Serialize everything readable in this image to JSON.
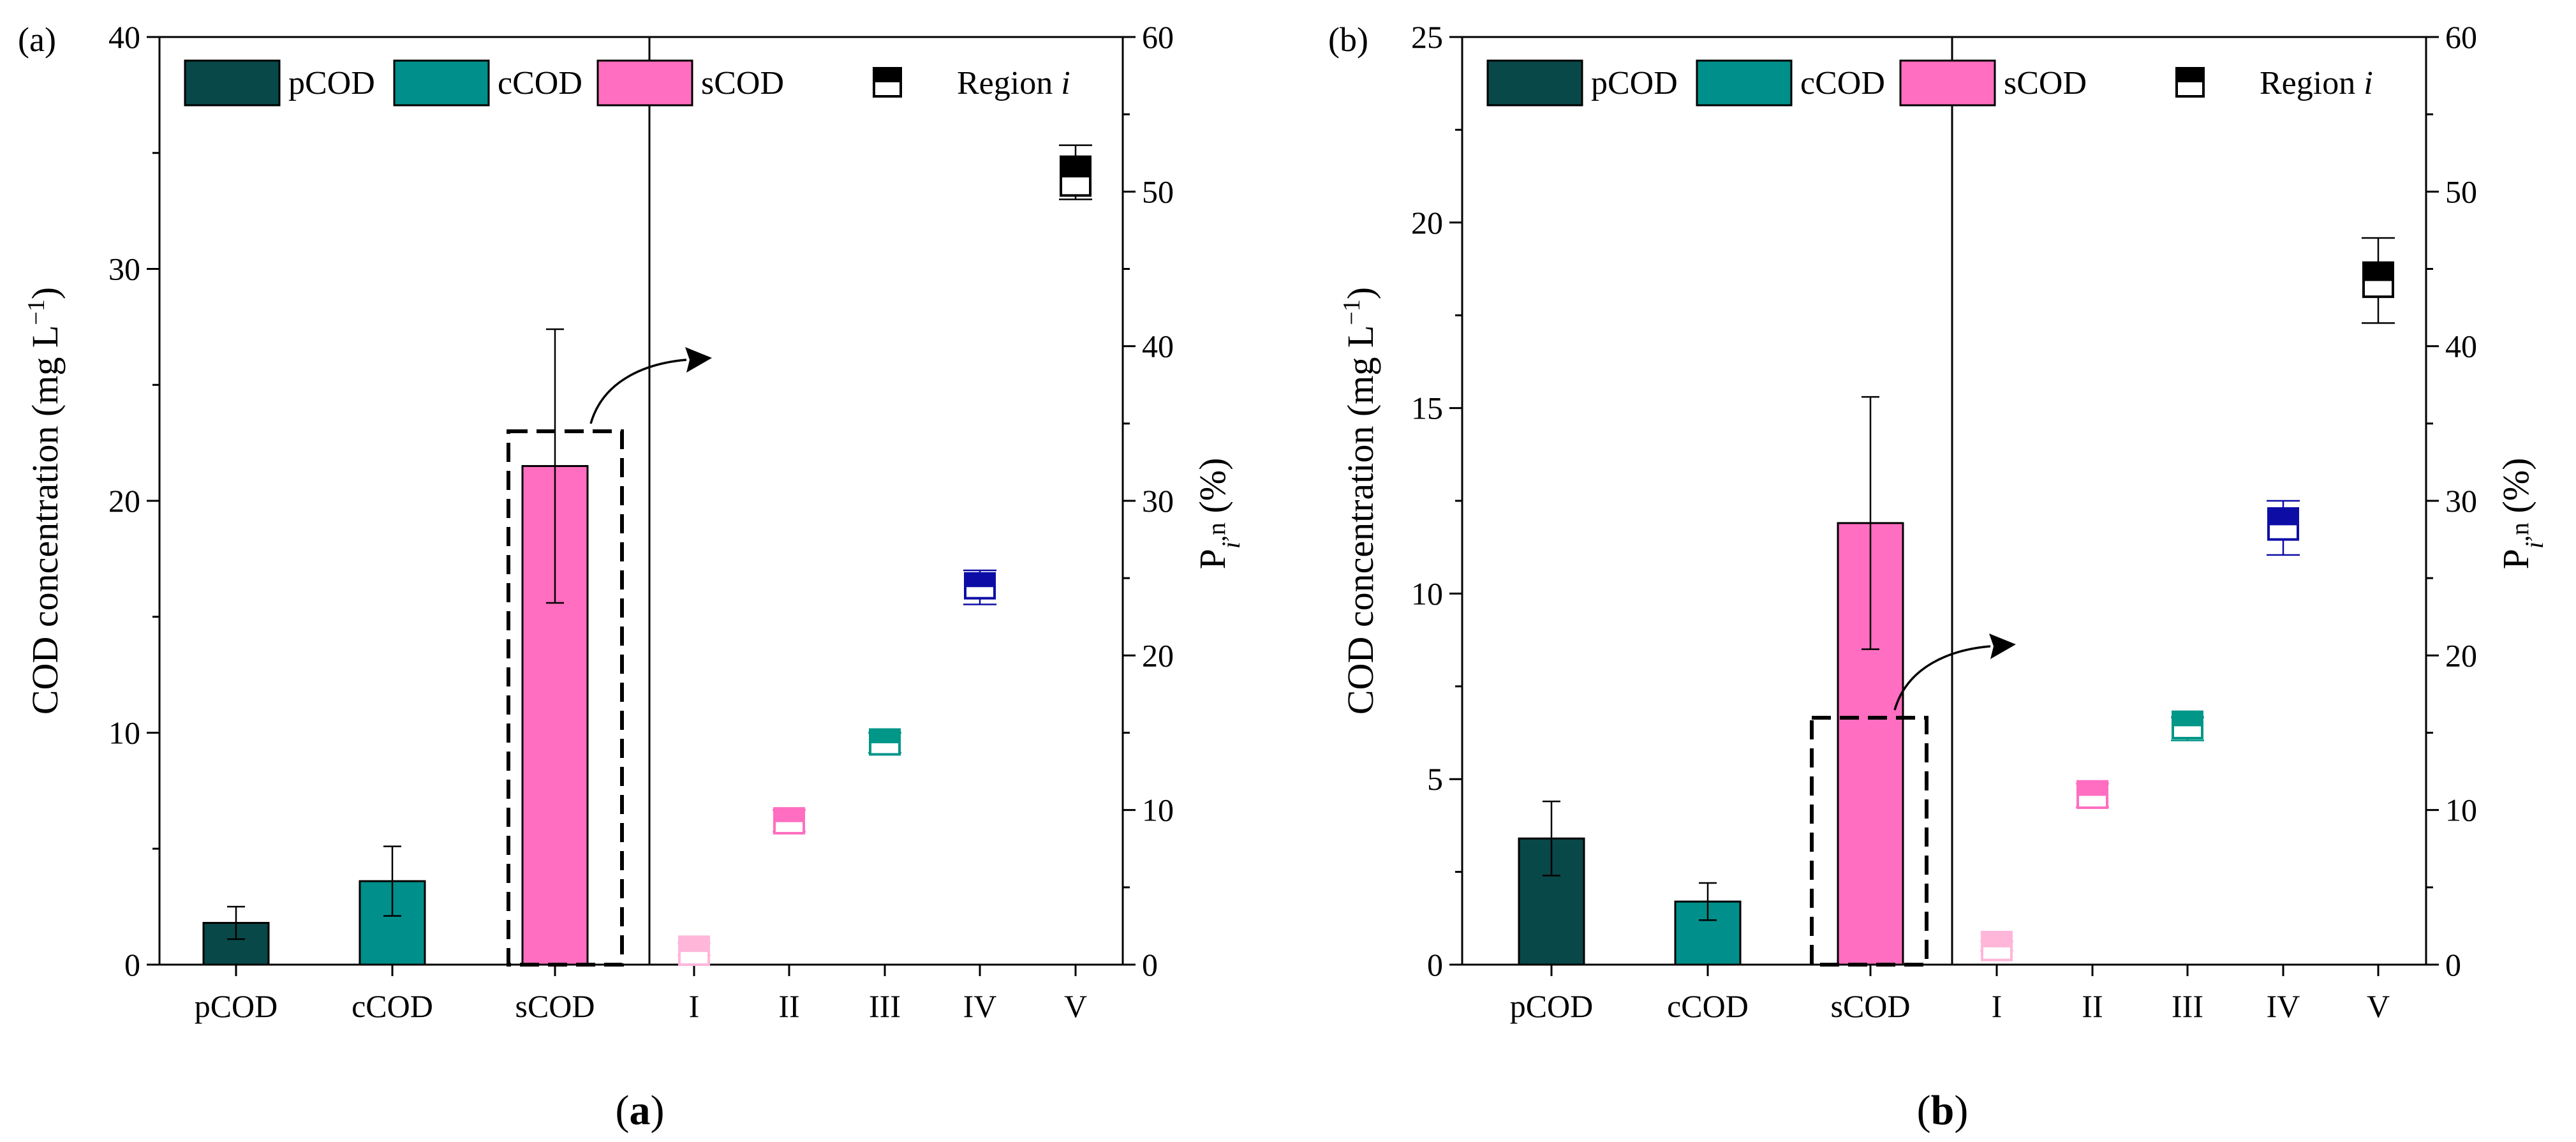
{
  "chart_data": [
    {
      "type": "bar",
      "panel_label": "(a)",
      "caption": {
        "open": "(",
        "letter": "a",
        "close": ")"
      },
      "categories": [
        "pCOD",
        "cCOD",
        "sCOD"
      ],
      "values": [
        1.8,
        3.6,
        21.5
      ],
      "errors": [
        0.7,
        1.5,
        5.9
      ],
      "bar_colors": [
        "#084848",
        "#008f8a",
        "#ff6ec0"
      ],
      "ylabel_left": {
        "main": "COD concentration (mg L",
        "sup": "−1",
        "close": ")"
      },
      "ylim_left": [
        0,
        40
      ],
      "yticks_left": [
        "0",
        "10",
        "20",
        "30",
        "40"
      ],
      "ylabel_right": {
        "main": "P",
        "sub_italic": "i",
        "sub_rest": ",n",
        "unit": " (%)"
      },
      "ylim_right": [
        0,
        60
      ],
      "yticks_right": [
        "0",
        "10",
        "20",
        "30",
        "40",
        "50",
        "60"
      ],
      "regions": [
        "I",
        "II",
        "III",
        "IV",
        "V"
      ],
      "region_colors": [
        "#ffb6d9",
        "#ff6ec0",
        "#009688",
        "#0d0da6",
        "#000000"
      ],
      "region_values": [
        0.9,
        9.3,
        14.4,
        24.5,
        51.0
      ],
      "region_upper": [
        1.4,
        10.0,
        15.0,
        25.5,
        53.0
      ],
      "region_lower": [
        0.6,
        8.6,
        13.7,
        23.3,
        49.5
      ],
      "region_box": [
        1.8,
        1.6,
        1.6,
        1.6,
        2.5
      ],
      "legend": [
        "pCOD",
        "cCOD",
        "sCOD",
        "Region "
      ],
      "legend_italic": "i",
      "grid": false
    },
    {
      "type": "bar",
      "panel_label": "(b)",
      "caption": {
        "open": "(",
        "letter": "b",
        "close": ")"
      },
      "categories": [
        "pCOD",
        "cCOD",
        "sCOD"
      ],
      "values": [
        3.4,
        1.7,
        11.9
      ],
      "errors": [
        1.0,
        0.5,
        3.4
      ],
      "bar_colors": [
        "#084848",
        "#008f8a",
        "#ff6ec0"
      ],
      "ylabel_left": {
        "main": "COD concentration (mg L",
        "sup": "−1",
        "close": ")"
      },
      "ylim_left": [
        0,
        25
      ],
      "yticks_left": [
        "0",
        "5",
        "10",
        "15",
        "20",
        "25"
      ],
      "ylabel_right": {
        "main": "P",
        "sub_italic": "i",
        "sub_rest": ",n",
        "unit": " (%)"
      },
      "ylim_right": [
        0,
        60
      ],
      "yticks_right": [
        "0",
        "10",
        "20",
        "30",
        "40",
        "50",
        "60"
      ],
      "regions": [
        "I",
        "II",
        "III",
        "IV",
        "V"
      ],
      "region_colors": [
        "#ffb6d9",
        "#ff6ec0",
        "#009688",
        "#0d0da6",
        "#000000"
      ],
      "region_values": [
        1.2,
        11.0,
        15.5,
        28.5,
        44.3
      ],
      "region_upper": [
        1.5,
        11.7,
        16.0,
        30.0,
        47.0
      ],
      "region_lower": [
        0.9,
        10.2,
        14.5,
        26.5,
        41.5
      ],
      "region_box": [
        1.8,
        1.7,
        1.7,
        2.0,
        2.2
      ],
      "legend": [
        "pCOD",
        "cCOD",
        "sCOD",
        "Region "
      ],
      "legend_italic": "i",
      "grid": false
    }
  ]
}
